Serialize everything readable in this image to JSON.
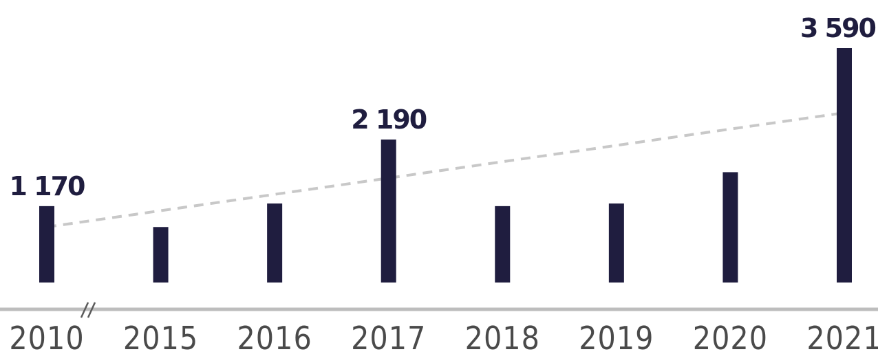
{
  "chart_data": {
    "type": "bar",
    "categories": [
      "2010",
      "2015",
      "2016",
      "2017",
      "2018",
      "2019",
      "2020",
      "2021"
    ],
    "values": [
      1170,
      850,
      1210,
      2190,
      1170,
      1210,
      1690,
      3590
    ],
    "data_labels": [
      "1 170",
      "",
      "",
      "2 190",
      "",
      "",
      "",
      "3 590"
    ],
    "trendline": {
      "style": "dashed",
      "from": 850,
      "to": 2600
    },
    "axis_break_after": "2010",
    "ylim": [
      0,
      3700
    ],
    "grid": false,
    "legend": "none",
    "title": "",
    "xlabel": "",
    "ylabel": "",
    "colors": {
      "bar": "#1f1d3f",
      "trend": "#c8c8c8",
      "axis": "#bdbdbd",
      "tick_text": "#4a4a4a"
    }
  }
}
